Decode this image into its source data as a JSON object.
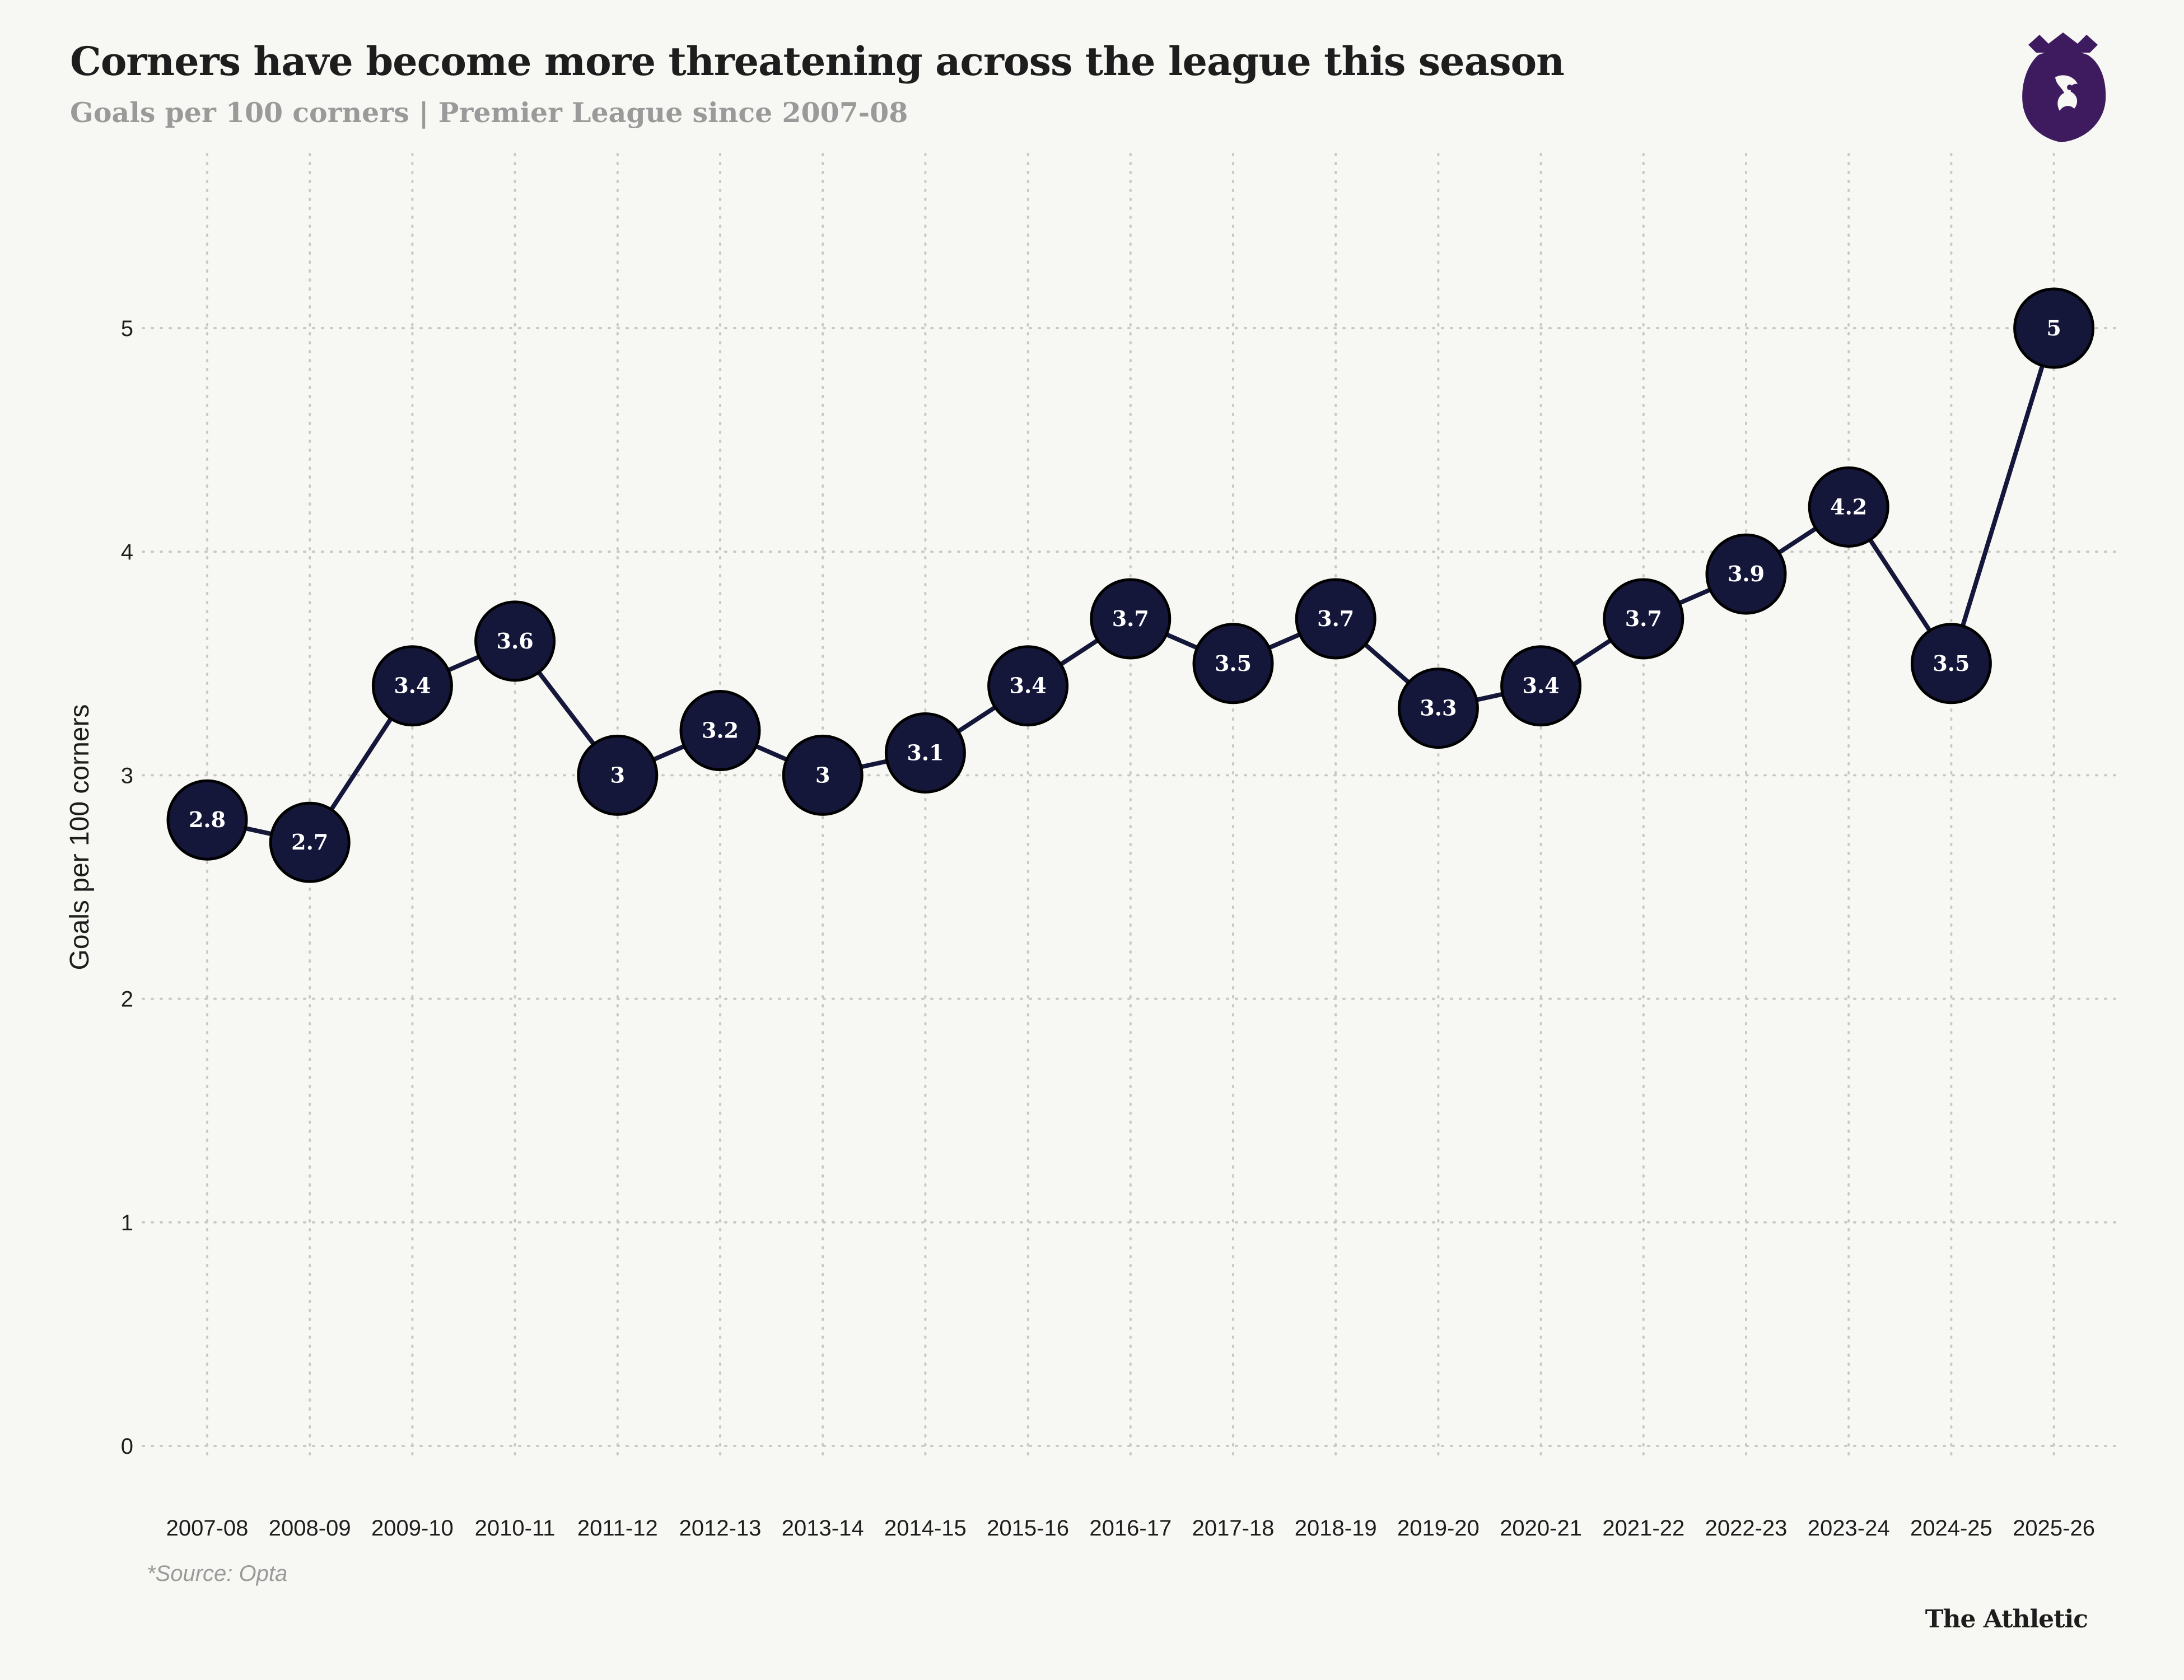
{
  "header": {
    "title": "Corners have become more threatening across the league this season",
    "subtitle": "Goals per 100 corners | Premier League since 2007-08"
  },
  "footer": {
    "source": "*Source: Opta",
    "brand": "The Athletic"
  },
  "colors": {
    "point_fill": "#14163a",
    "line": "#14163a",
    "grid": "#c9c9c3",
    "logo": "#3d1b5e"
  },
  "logo_icon": "premier-league-lion-icon",
  "chart_data": {
    "type": "line",
    "title": "Corners have become more threatening across the league this season",
    "subtitle": "Goals per 100 corners | Premier League since 2007-08",
    "xlabel": "",
    "ylabel": "Goals per 100 corners",
    "ylim": [
      0,
      5.5
    ],
    "yticks": [
      0,
      1,
      2,
      3,
      4,
      5
    ],
    "grid": true,
    "categories": [
      "2007-08",
      "2008-09",
      "2009-10",
      "2010-11",
      "2011-12",
      "2012-13",
      "2013-14",
      "2014-15",
      "2015-16",
      "2016-17",
      "2017-18",
      "2018-19",
      "2019-20",
      "2020-21",
      "2021-22",
      "2022-23",
      "2023-24",
      "2024-25",
      "2025-26"
    ],
    "series": [
      {
        "name": "Goals per 100 corners",
        "values": [
          2.8,
          2.7,
          3.4,
          3.6,
          3,
          3.2,
          3,
          3.1,
          3.4,
          3.7,
          3.5,
          3.7,
          3.3,
          3.4,
          3.7,
          3.9,
          4.2,
          3.5,
          5
        ]
      }
    ]
  }
}
